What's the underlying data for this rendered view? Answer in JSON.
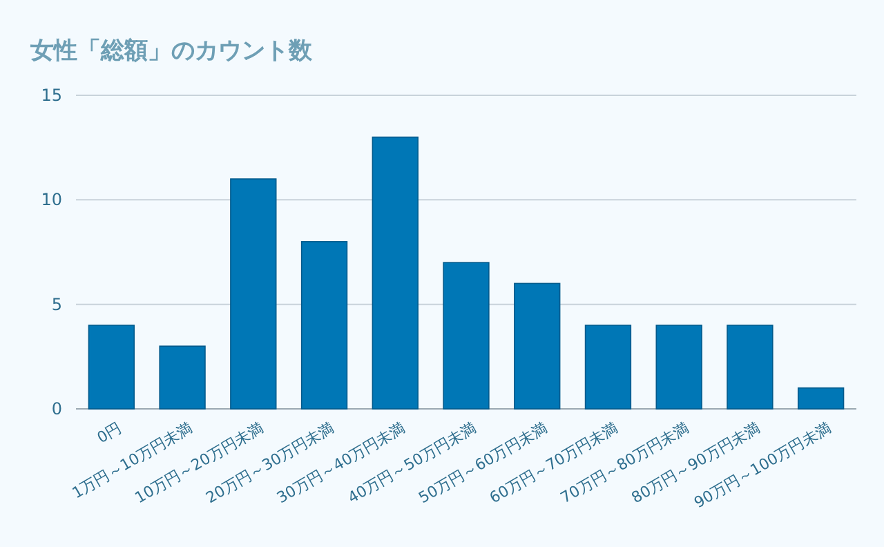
{
  "chart_data": {
    "type": "bar",
    "title": "女性「総額」のカウント数",
    "categories": [
      "0円",
      "1万円～10万円未満",
      "10万円～20万円未満",
      "20万円～30万円未満",
      "30万円～40万円未満",
      "40万円～50万円未満",
      "50万円～60万円未満",
      "60万円～70万円未満",
      "70万円～80万円未満",
      "80万円～90万円未満",
      "90万円～100万円未満"
    ],
    "values": [
      4,
      3,
      11,
      8,
      13,
      7,
      6,
      4,
      4,
      4,
      1
    ],
    "color": "#0077b6",
    "ylim": [
      0,
      15
    ],
    "yticks": [
      0,
      5,
      10,
      15
    ],
    "grid": "y"
  }
}
